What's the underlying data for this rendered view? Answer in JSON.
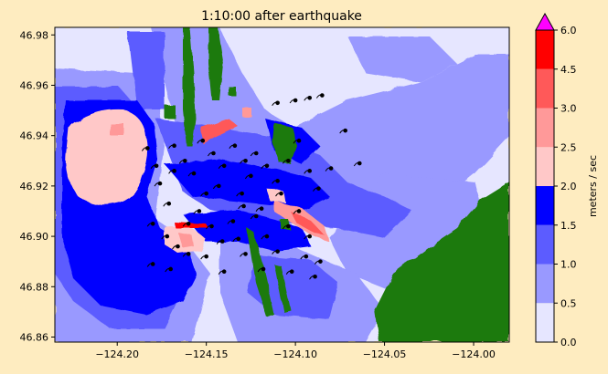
{
  "title": "1:10:00 after earthquake",
  "x_ticks": [
    "−124.20",
    "−124.15",
    "−124.10",
    "−124.05",
    "−124.00"
  ],
  "y_ticks": [
    "46.86",
    "46.88",
    "46.90",
    "46.92",
    "46.94",
    "46.96",
    "46.98"
  ],
  "colorbar": {
    "label": "meters / sec",
    "ticks": [
      "0.0",
      "0.5",
      "1.0",
      "1.5",
      "2.0",
      "2.5",
      "3.0",
      "4.5",
      "6.0"
    ],
    "colors": [
      "#e6e6ff",
      "#9999ff",
      "#5c5cff",
      "#0000ff",
      "#ffc8c8",
      "#ff9999",
      "#ff5959",
      "#ff0000"
    ],
    "extend_color": "#ff00ff"
  },
  "map_colors": {
    "land": "#1f7a0a",
    "speed_0_0_5": "#e6e6ff",
    "speed_0_5_1": "#9999ff",
    "speed_1_1_5": "#5c5cff",
    "speed_1_5_2": "#0000ff",
    "speed_2_2_5": "#ffc8c8",
    "speed_2_5_3": "#ff9999",
    "speed_3_4_5": "#ff5959",
    "speed_4_5_6": "#ff0000",
    "drifter": "#000000"
  },
  "chart_data": {
    "type": "heatmap",
    "title": "1:10:00 after earthquake",
    "xlim": [
      -124.235,
      -123.98
    ],
    "ylim": [
      46.858,
      46.983
    ],
    "colorbar_label": "meters / sec",
    "colorbar_levels": [
      0.0,
      0.5,
      1.0,
      1.5,
      2.0,
      2.5,
      3.0,
      4.5,
      6.0
    ],
    "drifters": [
      [
        -124.183,
        46.935
      ],
      [
        -124.178,
        46.928
      ],
      [
        -124.176,
        46.921
      ],
      [
        -124.171,
        46.913
      ],
      [
        -124.168,
        46.926
      ],
      [
        -124.162,
        46.93
      ],
      [
        -124.157,
        46.925
      ],
      [
        -124.152,
        46.938
      ],
      [
        -124.146,
        46.933
      ],
      [
        -124.14,
        46.928
      ],
      [
        -124.134,
        46.936
      ],
      [
        -124.128,
        46.93
      ],
      [
        -124.122,
        46.933
      ],
      [
        -124.116,
        46.928
      ],
      [
        -124.11,
        46.922
      ],
      [
        -124.104,
        46.93
      ],
      [
        -124.098,
        46.938
      ],
      [
        -124.092,
        46.926
      ],
      [
        -124.087,
        46.919
      ],
      [
        -124.08,
        46.927
      ],
      [
        -124.072,
        46.942
      ],
      [
        -124.064,
        46.929
      ],
      [
        -124.11,
        46.953
      ],
      [
        -124.1,
        46.954
      ],
      [
        -124.092,
        46.955
      ],
      [
        -124.085,
        46.956
      ],
      [
        -124.18,
        46.905
      ],
      [
        -124.172,
        46.9
      ],
      [
        -124.166,
        46.896
      ],
      [
        -124.16,
        46.905
      ],
      [
        -124.154,
        46.91
      ],
      [
        -124.147,
        46.904
      ],
      [
        -124.141,
        46.898
      ],
      [
        -124.135,
        46.906
      ],
      [
        -124.129,
        46.912
      ],
      [
        -124.122,
        46.908
      ],
      [
        -124.116,
        46.9
      ],
      [
        -124.11,
        46.894
      ],
      [
        -124.104,
        46.904
      ],
      [
        -124.098,
        46.91
      ],
      [
        -124.092,
        46.9
      ],
      [
        -124.086,
        46.89
      ],
      [
        -124.18,
        46.889
      ],
      [
        -124.17,
        46.887
      ],
      [
        -124.16,
        46.893
      ],
      [
        -124.15,
        46.892
      ],
      [
        -124.14,
        46.886
      ],
      [
        -124.128,
        46.893
      ],
      [
        -124.118,
        46.887
      ],
      [
        -124.102,
        46.886
      ],
      [
        -124.094,
        46.892
      ],
      [
        -124.089,
        46.884
      ],
      [
        -124.168,
        46.936
      ],
      [
        -124.15,
        46.917
      ],
      [
        -124.143,
        46.92
      ],
      [
        -124.13,
        46.917
      ],
      [
        -124.125,
        46.924
      ],
      [
        -124.108,
        46.917
      ],
      [
        -124.119,
        46.911
      ],
      [
        -124.132,
        46.899
      ]
    ]
  }
}
